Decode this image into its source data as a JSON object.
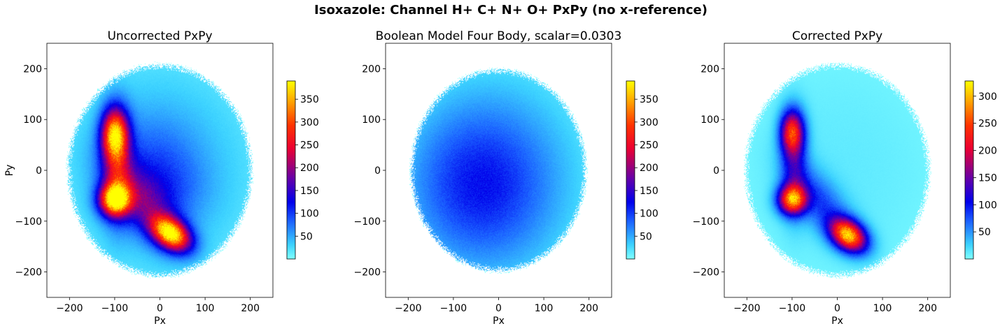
{
  "figure": {
    "suptitle": "Isoxazole: Channel H+ C+ N+ O+    PxPy (no x-reference)"
  },
  "chart_data": [
    {
      "type": "heatmap",
      "title": "Uncorrected PxPy",
      "xlabel": "Px",
      "ylabel": "Py",
      "xlim": [
        -250,
        250
      ],
      "ylim": [
        -250,
        250
      ],
      "xticks": [
        -200,
        -100,
        0,
        100,
        200
      ],
      "yticks": [
        -200,
        -100,
        0,
        100,
        200
      ],
      "colormap": "cyan-blue-purple-red-yellow",
      "colorbar": {
        "ticks": [
          50,
          100,
          150,
          200,
          250,
          300,
          350
        ],
        "max": 390
      },
      "support": {
        "rx": 205,
        "ry": 210
      },
      "background_level": 40,
      "features": [
        {
          "x": -100,
          "y": -58,
          "sx": 24,
          "sy": 22,
          "rot": 0,
          "amp": 320
        },
        {
          "x": -100,
          "y": 72,
          "sx": 20,
          "sy": 34,
          "rot": 0,
          "amp": 270
        },
        {
          "x": 25,
          "y": -125,
          "sx": 32,
          "sy": 20,
          "rot": -0.5,
          "amp": 340
        },
        {
          "x": -95,
          "y": 10,
          "sx": 22,
          "sy": 70,
          "rot": 0,
          "amp": 130
        },
        {
          "x": -40,
          "y": -60,
          "sx": 35,
          "sy": 70,
          "rot": 0.75,
          "amp": 110
        },
        {
          "x": -20,
          "y": 30,
          "sx": 70,
          "sy": 60,
          "rot": 0,
          "amp": 40
        },
        {
          "x": 20,
          "y": -40,
          "sx": 60,
          "sy": 50,
          "rot": 0,
          "amp": 40
        }
      ]
    },
    {
      "type": "heatmap",
      "title": "Boolean Model Four Body, scalar=0.0303",
      "xlabel": "Px",
      "ylabel": "",
      "xlim": [
        -250,
        250
      ],
      "ylim": [
        -250,
        250
      ],
      "xticks": [
        -200,
        -100,
        0,
        100,
        200
      ],
      "yticks": [
        -200,
        -100,
        0,
        100,
        200
      ],
      "colormap": "cyan-blue-purple-red-yellow",
      "colorbar": {
        "ticks": [
          50,
          100,
          150,
          200,
          250,
          300,
          350
        ],
        "max": 390
      },
      "support": {
        "rx": 195,
        "ry": 200
      },
      "background_level": 30,
      "features": [
        {
          "x": -40,
          "y": -30,
          "sx": 110,
          "sy": 110,
          "rot": 0,
          "amp": 90
        }
      ]
    },
    {
      "type": "heatmap",
      "title": "Corrected PxPy",
      "xlabel": "Px",
      "ylabel": "",
      "xlim": [
        -250,
        250
      ],
      "ylim": [
        -250,
        250
      ],
      "xticks": [
        -200,
        -100,
        0,
        100,
        200
      ],
      "yticks": [
        -200,
        -100,
        0,
        100,
        200
      ],
      "colormap": "cyan-blue-purple-red-yellow",
      "colorbar": {
        "ticks": [
          50,
          100,
          150,
          200,
          250,
          300
        ],
        "max": 328
      },
      "support": {
        "rx": 205,
        "ry": 210
      },
      "background_level": 12,
      "features": [
        {
          "x": -100,
          "y": -58,
          "sx": 22,
          "sy": 20,
          "rot": 0,
          "amp": 240
        },
        {
          "x": -100,
          "y": 75,
          "sx": 18,
          "sy": 30,
          "rot": 0,
          "amp": 200
        },
        {
          "x": 25,
          "y": -128,
          "sx": 30,
          "sy": 20,
          "rot": -0.5,
          "amp": 280
        },
        {
          "x": -95,
          "y": 10,
          "sx": 20,
          "sy": 65,
          "rot": 0,
          "amp": 80
        },
        {
          "x": -40,
          "y": -60,
          "sx": 30,
          "sy": 65,
          "rot": 0.75,
          "amp": 70
        }
      ]
    }
  ]
}
